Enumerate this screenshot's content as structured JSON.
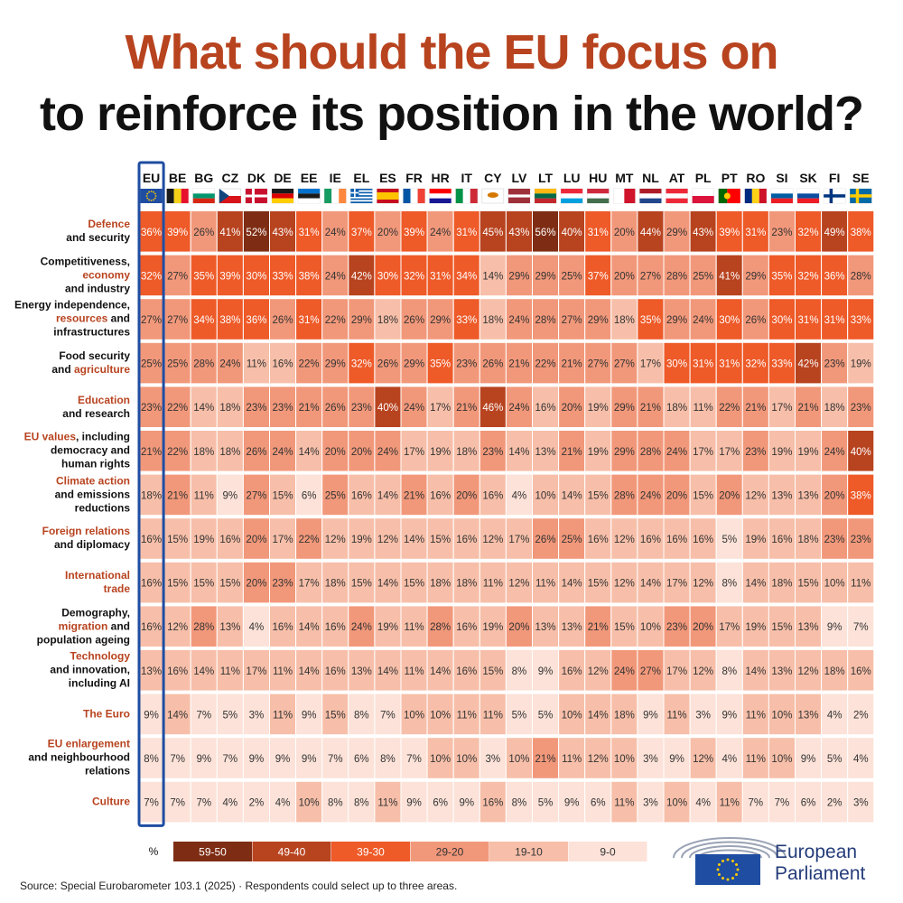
{
  "title": {
    "line1": "What should the EU focus on",
    "line2": "to reinforce its position in the world?"
  },
  "chart_data": {
    "type": "heatmap",
    "title": "What should the EU focus on to reinforce its position in the world?",
    "value_unit": "%",
    "countries": [
      "EU",
      "BE",
      "BG",
      "CZ",
      "DK",
      "DE",
      "EE",
      "IE",
      "EL",
      "ES",
      "FR",
      "HR",
      "IT",
      "CY",
      "LV",
      "LT",
      "LU",
      "HU",
      "MT",
      "NL",
      "AT",
      "PL",
      "PT",
      "RO",
      "SI",
      "SK",
      "FI",
      "SE"
    ],
    "rows": [
      {
        "label_parts": [
          [
            "Defence",
            true
          ],
          [
            "and security",
            false
          ]
        ],
        "values": [
          36,
          39,
          26,
          41,
          52,
          43,
          31,
          24,
          37,
          20,
          39,
          24,
          31,
          45,
          43,
          56,
          40,
          31,
          20,
          44,
          29,
          43,
          39,
          31,
          23,
          32,
          49,
          38
        ]
      },
      {
        "label_parts": [
          [
            "Competitiveness,",
            false
          ],
          [
            "economy",
            true
          ],
          [
            "and industry",
            false
          ]
        ],
        "values": [
          32,
          27,
          35,
          39,
          30,
          33,
          38,
          24,
          42,
          30,
          32,
          31,
          34,
          14,
          29,
          29,
          25,
          37,
          20,
          27,
          28,
          25,
          41,
          29,
          35,
          32,
          36,
          28
        ]
      },
      {
        "label_parts": [
          [
            "Energy independence,",
            false
          ],
          [
            "resources",
            true,
            " and"
          ],
          [
            "infrastructures",
            false
          ]
        ],
        "values": [
          27,
          27,
          34,
          38,
          36,
          26,
          31,
          22,
          29,
          18,
          26,
          29,
          33,
          18,
          24,
          28,
          27,
          29,
          18,
          35,
          29,
          24,
          30,
          26,
          30,
          31,
          31,
          33
        ]
      },
      {
        "label_parts": [
          [
            "Food security",
            false
          ],
          [
            "and ",
            false,
            "agriculture"
          ]
        ],
        "values": [
          25,
          25,
          28,
          24,
          11,
          16,
          22,
          29,
          32,
          26,
          29,
          35,
          23,
          26,
          21,
          22,
          21,
          27,
          27,
          17,
          30,
          31,
          31,
          32,
          33,
          42,
          23,
          19
        ]
      },
      {
        "label_parts": [
          [
            "Education",
            true
          ],
          [
            "and research",
            false
          ]
        ],
        "values": [
          23,
          22,
          14,
          18,
          23,
          23,
          21,
          26,
          23,
          40,
          24,
          17,
          21,
          46,
          24,
          16,
          20,
          19,
          29,
          21,
          18,
          11,
          22,
          21,
          17,
          21,
          18,
          23
        ]
      },
      {
        "label_parts": [
          [
            "EU values",
            true,
            ", including"
          ],
          [
            "democracy and",
            false
          ],
          [
            "human rights",
            false
          ]
        ],
        "values": [
          21,
          22,
          18,
          18,
          26,
          24,
          14,
          20,
          20,
          24,
          17,
          19,
          18,
          23,
          14,
          13,
          21,
          19,
          29,
          28,
          24,
          17,
          17,
          23,
          19,
          19,
          24,
          40
        ]
      },
      {
        "label_parts": [
          [
            "Climate action",
            true
          ],
          [
            "and emissions",
            false
          ],
          [
            "reductions",
            false
          ]
        ],
        "values": [
          18,
          21,
          11,
          9,
          27,
          15,
          6,
          25,
          16,
          14,
          21,
          16,
          20,
          16,
          4,
          10,
          14,
          15,
          28,
          24,
          20,
          15,
          20,
          12,
          13,
          13,
          20,
          38
        ]
      },
      {
        "label_parts": [
          [
            "Foreign relations",
            true
          ],
          [
            "and diplomacy",
            false
          ]
        ],
        "values": [
          16,
          15,
          19,
          16,
          20,
          17,
          22,
          12,
          19,
          12,
          14,
          15,
          16,
          12,
          17,
          26,
          25,
          16,
          12,
          16,
          16,
          16,
          5,
          19,
          16,
          18,
          23,
          23
        ]
      },
      {
        "label_parts": [
          [
            "International",
            true
          ],
          [
            "trade",
            true
          ]
        ],
        "values": [
          16,
          15,
          15,
          15,
          20,
          23,
          17,
          18,
          15,
          14,
          15,
          18,
          18,
          11,
          12,
          11,
          14,
          15,
          12,
          14,
          17,
          12,
          8,
          14,
          18,
          15,
          10,
          11
        ]
      },
      {
        "label_parts": [
          [
            "Demography,",
            false
          ],
          [
            "migration",
            true,
            " and"
          ],
          [
            "population ageing",
            false
          ]
        ],
        "values": [
          16,
          12,
          28,
          13,
          4,
          16,
          14,
          16,
          24,
          19,
          11,
          28,
          16,
          19,
          20,
          13,
          13,
          21,
          15,
          10,
          23,
          20,
          17,
          19,
          15,
          13,
          9,
          7
        ]
      },
      {
        "label_parts": [
          [
            "Technology",
            true
          ],
          [
            "and innovation,",
            false
          ],
          [
            "including AI",
            false
          ]
        ],
        "values": [
          13,
          16,
          14,
          11,
          17,
          11,
          14,
          16,
          13,
          14,
          11,
          14,
          16,
          15,
          8,
          9,
          16,
          12,
          24,
          27,
          17,
          12,
          8,
          14,
          13,
          12,
          18,
          16
        ]
      },
      {
        "label_parts": [
          [
            "The Euro",
            true
          ]
        ],
        "values": [
          9,
          14,
          7,
          5,
          3,
          11,
          9,
          15,
          8,
          7,
          10,
          10,
          11,
          11,
          5,
          5,
          10,
          14,
          18,
          9,
          11,
          3,
          9,
          11,
          10,
          13,
          4,
          2
        ]
      },
      {
        "label_parts": [
          [
            "EU enlargement",
            true
          ],
          [
            "and neighbourhood",
            false
          ],
          [
            "relations",
            false
          ]
        ],
        "values": [
          8,
          7,
          9,
          7,
          9,
          9,
          9,
          7,
          6,
          8,
          7,
          10,
          10,
          3,
          10,
          21,
          11,
          12,
          10,
          3,
          9,
          12,
          4,
          11,
          10,
          9,
          5,
          4
        ]
      },
      {
        "label_parts": [
          [
            "Culture",
            true
          ]
        ],
        "values": [
          7,
          7,
          7,
          4,
          2,
          4,
          10,
          8,
          8,
          11,
          9,
          6,
          9,
          16,
          8,
          5,
          9,
          6,
          11,
          3,
          10,
          4,
          11,
          7,
          7,
          6,
          2,
          3
        ]
      }
    ],
    "legend": {
      "unit_label": "%",
      "bins": [
        {
          "label": "59-50",
          "min": 50,
          "max": 59,
          "color": "#7e2d14"
        },
        {
          "label": "49-40",
          "min": 40,
          "max": 49,
          "color": "#b8431f"
        },
        {
          "label": "39-30",
          "min": 30,
          "max": 39,
          "color": "#ee5a28"
        },
        {
          "label": "29-20",
          "min": 20,
          "max": 29,
          "color": "#f2987a"
        },
        {
          "label": "19-10",
          "min": 10,
          "max": 19,
          "color": "#f7bfa9"
        },
        {
          "label": "9-0",
          "min": 0,
          "max": 9,
          "color": "#fce2d8"
        }
      ]
    }
  },
  "colors": {
    "accent": "#b8431f",
    "eu_blue": "#1f4da1",
    "logo_text": "#253c7a"
  },
  "logo": {
    "line1": "European",
    "line2": "Parliament"
  },
  "source": "Source: Special Eurobarometer 103.1 (2025) · Respondents could select up to three areas."
}
